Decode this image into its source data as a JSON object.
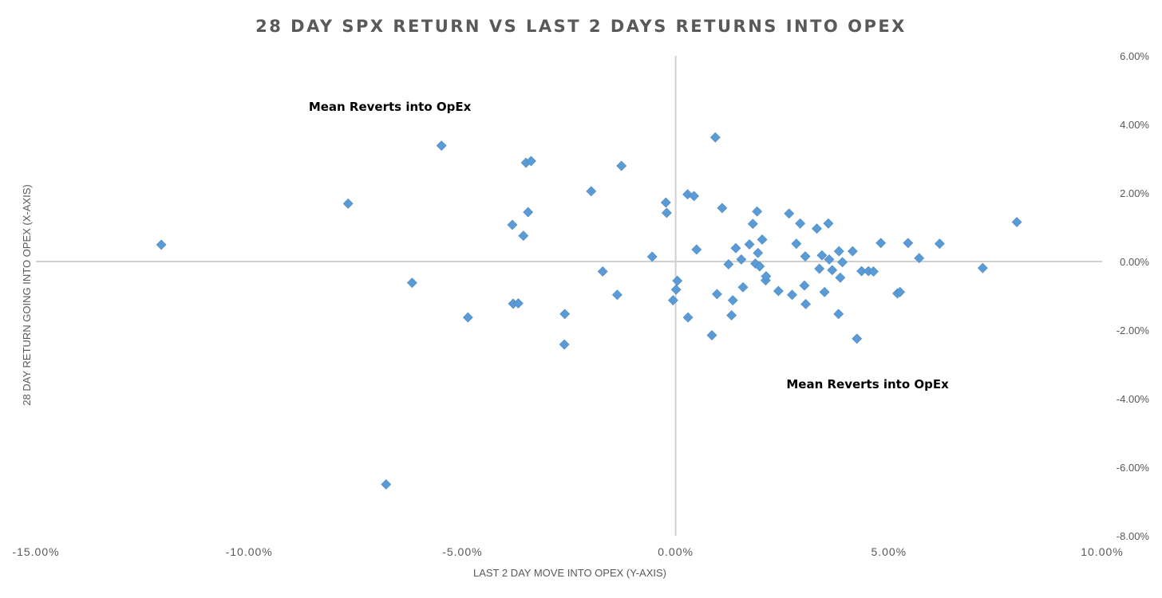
{
  "chart_data": {
    "type": "scatter",
    "title": "28 DAY SPX RETURN VS LAST 2 DAYS RETURNS INTO OPEX",
    "xlabel": "LAST 2 DAY MOVE INTO OPEX (Y-AXIS)",
    "ylabel": "28 DAY RETURN GOING INTO OPEX (X-AXIS)",
    "xlim": [
      -0.15,
      0.1
    ],
    "ylim": [
      -0.08,
      0.06
    ],
    "x_ticks": [
      -0.15,
      -0.1,
      -0.05,
      0.0,
      0.05,
      0.1
    ],
    "x_tick_labels": [
      "-15.00%",
      "-10.00%",
      "-5.00%",
      "0.00%",
      "5.00%",
      "10.00%"
    ],
    "y_ticks": [
      0.06,
      0.04,
      0.02,
      0.0,
      -0.02,
      -0.04,
      -0.06,
      -0.08
    ],
    "y_tick_labels": [
      "6.00%",
      "4.00%",
      "2.00%",
      "0.00%",
      "-2.00%",
      "-4.00%",
      "-6.00%",
      "-8.00%"
    ],
    "grid": false,
    "marker": "diamond",
    "color": "#5b9bd5",
    "annotations": [
      {
        "text": "Mean Reverts into OpEx",
        "x": -0.067,
        "y": 0.044
      },
      {
        "text": "Mean Reverts into OpEx",
        "x": 0.045,
        "y": -0.037
      }
    ],
    "points": [
      {
        "x": -0.1206,
        "y": 0.0049
      },
      {
        "x": -0.0768,
        "y": 0.0169
      },
      {
        "x": -0.0679,
        "y": -0.065
      },
      {
        "x": -0.0618,
        "y": -0.0062
      },
      {
        "x": -0.0549,
        "y": 0.0338
      },
      {
        "x": -0.0487,
        "y": -0.0163
      },
      {
        "x": -0.0383,
        "y": 0.0107
      },
      {
        "x": -0.0381,
        "y": -0.0123
      },
      {
        "x": -0.0369,
        "y": -0.0122
      },
      {
        "x": -0.0357,
        "y": 0.0075
      },
      {
        "x": -0.0351,
        "y": 0.0288
      },
      {
        "x": -0.0346,
        "y": 0.0144
      },
      {
        "x": -0.0339,
        "y": 0.0293
      },
      {
        "x": -0.026,
        "y": -0.0153
      },
      {
        "x": -0.0261,
        "y": -0.0242
      },
      {
        "x": -0.0198,
        "y": 0.0205
      },
      {
        "x": -0.0171,
        "y": -0.0029
      },
      {
        "x": -0.0137,
        "y": -0.0097
      },
      {
        "x": -0.0127,
        "y": 0.0279
      },
      {
        "x": -0.0055,
        "y": 0.0014
      },
      {
        "x": -0.0023,
        "y": 0.0172
      },
      {
        "x": -0.0021,
        "y": 0.0142
      },
      {
        "x": -0.0006,
        "y": -0.0113
      },
      {
        "x": 0.0001,
        "y": -0.0082
      },
      {
        "x": 0.0004,
        "y": -0.0056
      },
      {
        "x": 0.0029,
        "y": -0.0163
      },
      {
        "x": 0.0028,
        "y": 0.0196
      },
      {
        "x": 0.0043,
        "y": 0.0191
      },
      {
        "x": 0.0049,
        "y": 0.0035
      },
      {
        "x": 0.0085,
        "y": -0.0215
      },
      {
        "x": 0.0093,
        "y": 0.0362
      },
      {
        "x": 0.0097,
        "y": -0.0095
      },
      {
        "x": 0.0109,
        "y": 0.0156
      },
      {
        "x": 0.0124,
        "y": -0.0008
      },
      {
        "x": 0.0131,
        "y": -0.0157
      },
      {
        "x": 0.0134,
        "y": -0.0113
      },
      {
        "x": 0.0141,
        "y": 0.0039
      },
      {
        "x": 0.0154,
        "y": 0.0006
      },
      {
        "x": 0.0158,
        "y": -0.0075
      },
      {
        "x": 0.0173,
        "y": 0.005
      },
      {
        "x": 0.0181,
        "y": 0.011
      },
      {
        "x": 0.0187,
        "y": -0.0006
      },
      {
        "x": 0.0191,
        "y": 0.0146
      },
      {
        "x": 0.0193,
        "y": 0.0025
      },
      {
        "x": 0.0197,
        "y": -0.0014
      },
      {
        "x": 0.0203,
        "y": 0.0064
      },
      {
        "x": 0.0211,
        "y": -0.0055
      },
      {
        "x": 0.0212,
        "y": -0.0043
      },
      {
        "x": 0.0241,
        "y": -0.0086
      },
      {
        "x": 0.0266,
        "y": 0.014
      },
      {
        "x": 0.0273,
        "y": -0.0097
      },
      {
        "x": 0.0283,
        "y": 0.0052
      },
      {
        "x": 0.0292,
        "y": 0.0111
      },
      {
        "x": 0.0302,
        "y": -0.007
      },
      {
        "x": 0.0304,
        "y": 0.0015
      },
      {
        "x": 0.0305,
        "y": -0.0124
      },
      {
        "x": 0.0331,
        "y": 0.0096
      },
      {
        "x": 0.0337,
        "y": -0.0021
      },
      {
        "x": 0.0343,
        "y": 0.0018
      },
      {
        "x": 0.0349,
        "y": -0.0089
      },
      {
        "x": 0.0358,
        "y": 0.0111
      },
      {
        "x": 0.036,
        "y": 0.0006
      },
      {
        "x": 0.0367,
        "y": -0.0025
      },
      {
        "x": 0.0382,
        "y": -0.0153
      },
      {
        "x": 0.0383,
        "y": 0.003
      },
      {
        "x": 0.0386,
        "y": -0.0047
      },
      {
        "x": 0.0391,
        "y": -0.0002
      },
      {
        "x": 0.0415,
        "y": 0.003
      },
      {
        "x": 0.0425,
        "y": -0.0225
      },
      {
        "x": 0.0436,
        "y": -0.0028
      },
      {
        "x": 0.0452,
        "y": -0.0028
      },
      {
        "x": 0.0464,
        "y": -0.0029
      },
      {
        "x": 0.0481,
        "y": 0.0054
      },
      {
        "x": 0.052,
        "y": -0.0093
      },
      {
        "x": 0.0526,
        "y": -0.0089
      },
      {
        "x": 0.0545,
        "y": 0.0054
      },
      {
        "x": 0.0571,
        "y": 0.001
      },
      {
        "x": 0.0619,
        "y": 0.0052
      },
      {
        "x": 0.072,
        "y": -0.0019
      },
      {
        "x": 0.08,
        "y": 0.0115
      }
    ]
  }
}
